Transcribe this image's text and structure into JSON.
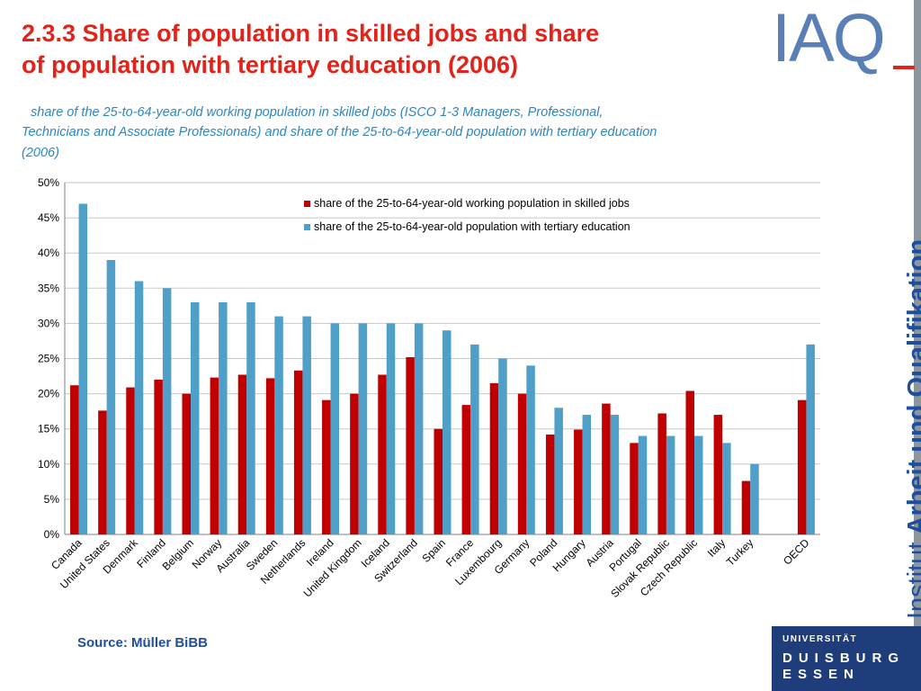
{
  "header": {
    "title_line1": "2.3.3  Share of population in skilled jobs and share",
    "title_line2": "of population with tertiary education (2006)",
    "subtitle_line1": "share of the 25-to-64-year-old working population in skilled jobs (ISCO 1-3 Managers, Professional,",
    "subtitle_line2": "Technicians and Associate Professionals) and share of the 25-to-64-year-old population with tertiary education",
    "subtitle_line3": "(2006)"
  },
  "source": "Source: Müller BiBB",
  "branding": {
    "logo_text": "IAQ",
    "vertical_light": "Institut ",
    "vertical_bold": "Arbeit und Qualifikation",
    "university_line1": "UNIVERSITÄT",
    "university_line2": "DUISBURG",
    "university_line3": "ESSEN"
  },
  "colors": {
    "title": "#e2231a",
    "subtitle": "#2e86c1",
    "series_skilled": "#c00000",
    "series_tertiary": "#4f9fc9",
    "brand_blue": "#1f4e9c",
    "university_box": "#1f3d7a"
  },
  "chart_data": {
    "type": "bar",
    "categories": [
      "Canada",
      "United States",
      "Denmark",
      "Finland",
      "Belgium",
      "Norway",
      "Australia",
      "Sweden",
      "Netherlands",
      "Ireland",
      "United Kingdom",
      "Iceland",
      "Switzerland",
      "Spain",
      "France",
      "Luxembourg",
      "Germany",
      "Poland",
      "Hungary",
      "Austria",
      "Portugal",
      "Slovak Republic",
      "Czech Republic",
      "Italy",
      "Turkey",
      "",
      "OECD"
    ],
    "series": [
      {
        "name": "share of the 25-to-64-year-old working population in skilled jobs",
        "color": "#c00000",
        "values": [
          21.2,
          17.6,
          20.9,
          22.0,
          20.0,
          22.3,
          22.7,
          22.2,
          23.3,
          19.1,
          20.0,
          22.7,
          25.2,
          15.0,
          18.4,
          21.5,
          20.0,
          14.2,
          14.9,
          18.6,
          13.0,
          17.2,
          20.4,
          17.0,
          7.6,
          null,
          19.1
        ]
      },
      {
        "name": "share of the 25-to-64-year-old population with tertiary education",
        "color": "#4f9fc9",
        "values": [
          47,
          39,
          36,
          35,
          33,
          33,
          33,
          31,
          31,
          30,
          30,
          30,
          30,
          29,
          27,
          25,
          24,
          18,
          17,
          17,
          14,
          14,
          14,
          13,
          10,
          null,
          27
        ]
      }
    ],
    "y_ticks": [
      "0%",
      "5%",
      "10%",
      "15%",
      "20%",
      "25%",
      "30%",
      "35%",
      "40%",
      "45%",
      "50%"
    ],
    "ylim": [
      0,
      50
    ],
    "grid": true,
    "legend_position": "top-right"
  }
}
